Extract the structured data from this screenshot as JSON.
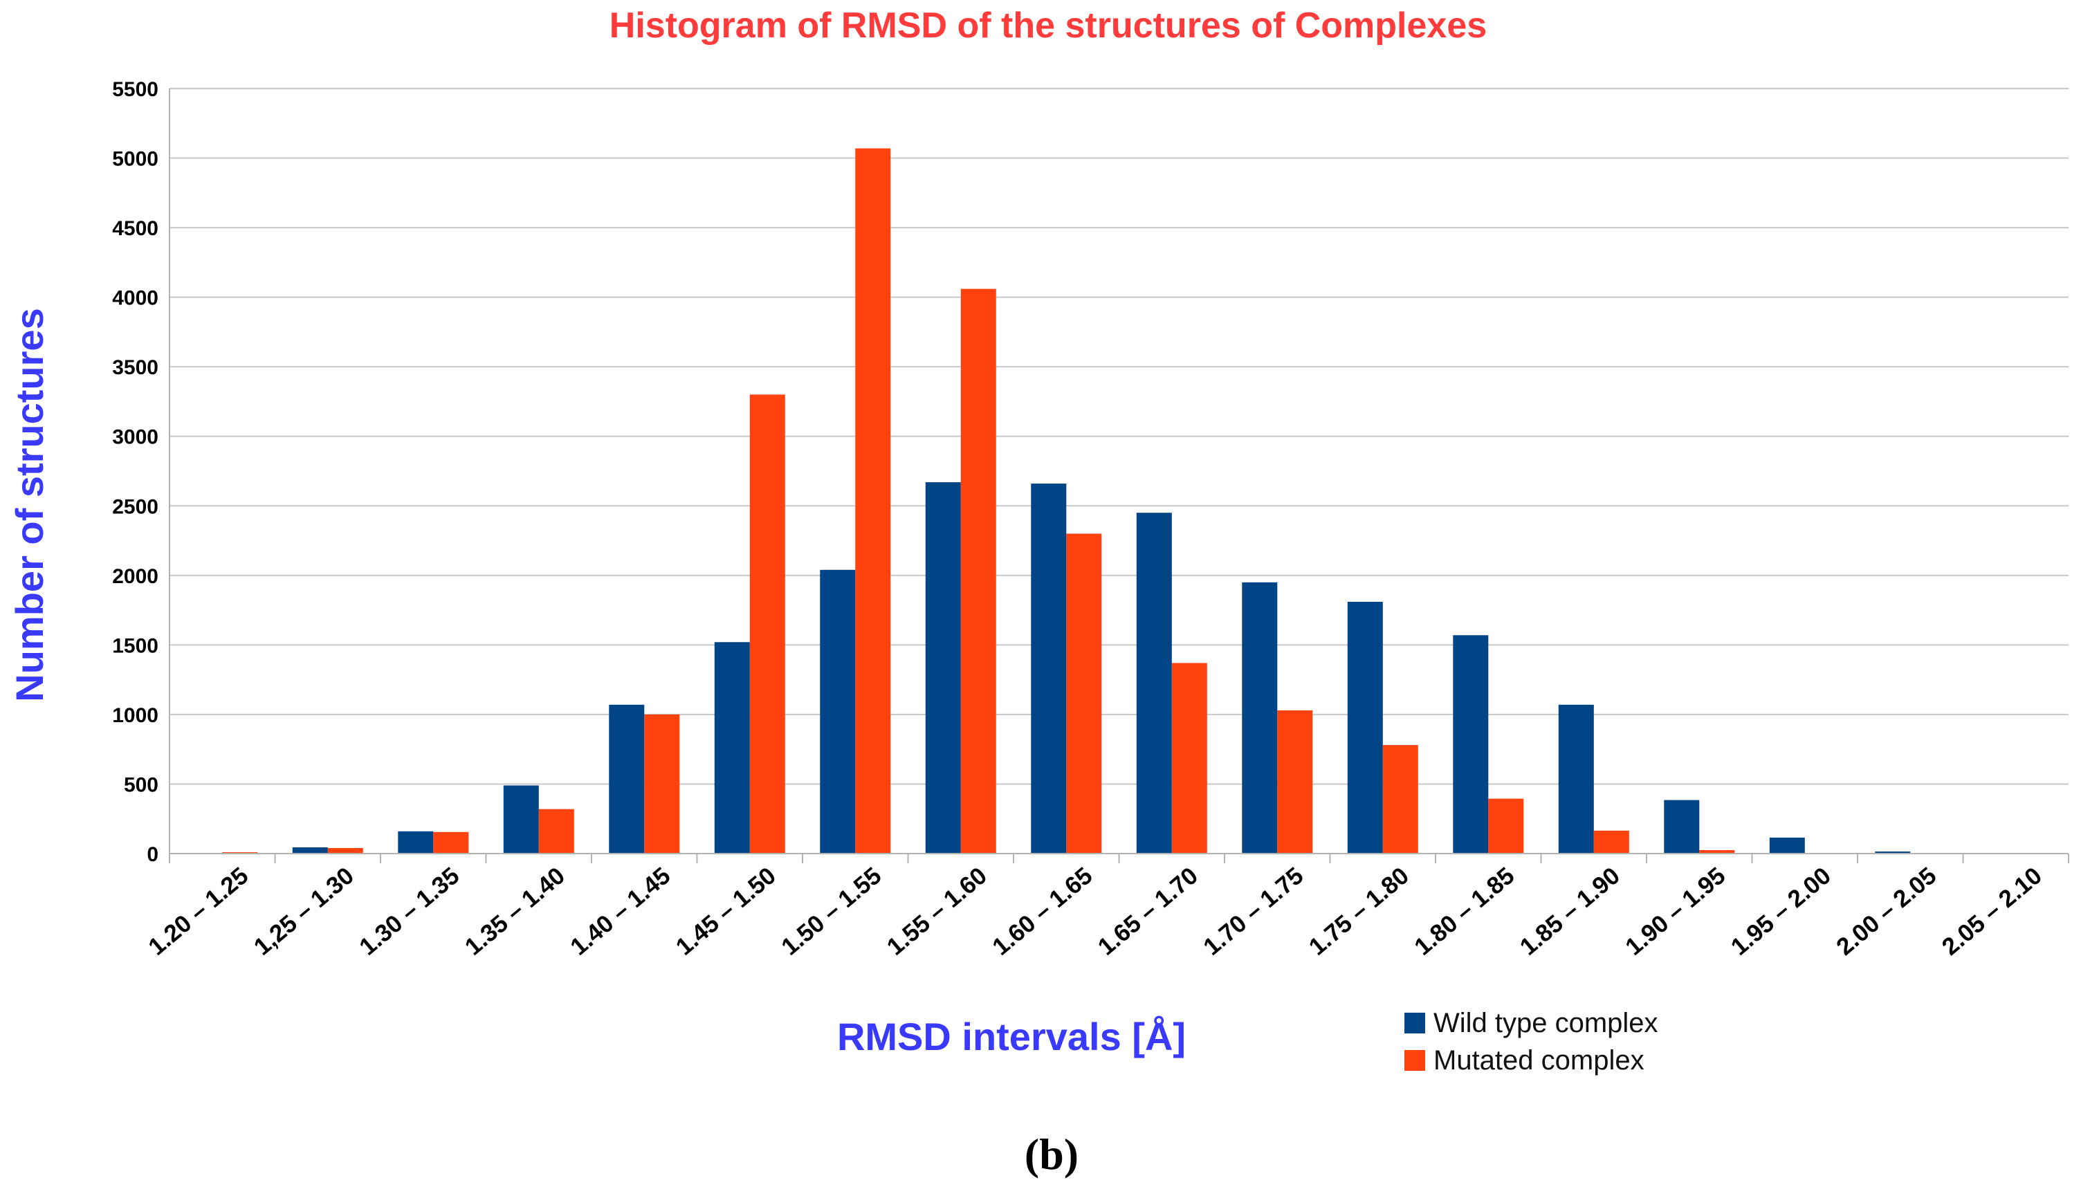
{
  "chart_data": {
    "type": "bar",
    "title": "Histogram of RMSD of the structures of Complexes",
    "xlabel": "RMSD intervals [Å]",
    "ylabel": "Number of structures",
    "ylim": [
      0,
      5500
    ],
    "yticks": [
      "0",
      "500",
      "1000",
      "1500",
      "2000",
      "2500",
      "3000",
      "3500",
      "4000",
      "4500",
      "5000",
      "5500"
    ],
    "grid": true,
    "legend_position": "bottom-right",
    "categories": [
      "1.20 – 1.25",
      "1,25 – 1.30",
      "1.30 – 1.35",
      "1.35 – 1.40",
      "1.40 – 1.45",
      "1.45 – 1.50",
      "1.50 – 1.55",
      "1.55 – 1.60",
      "1.60 – 1.65",
      "1.65 – 1.70",
      "1.70 – 1.75",
      "1.75 – 1.80",
      "1.80 – 1.85",
      "1.85 – 1.90",
      "1.90 – 1.95",
      "1.95 – 2.00",
      "2.00 – 2.05",
      "2.05 – 2.10"
    ],
    "series": [
      {
        "name": "Wild type complex",
        "color": "#004586",
        "values": [
          0,
          45,
          160,
          490,
          1070,
          1520,
          2040,
          2670,
          2660,
          2450,
          1950,
          1810,
          1570,
          1070,
          385,
          115,
          15,
          0
        ]
      },
      {
        "name": "Mutated complex",
        "color": "#ff420e",
        "values": [
          10,
          40,
          155,
          320,
          1000,
          3300,
          5070,
          4060,
          2300,
          1370,
          1030,
          780,
          395,
          165,
          25,
          5,
          0,
          0
        ]
      }
    ]
  },
  "caption": "(b)"
}
